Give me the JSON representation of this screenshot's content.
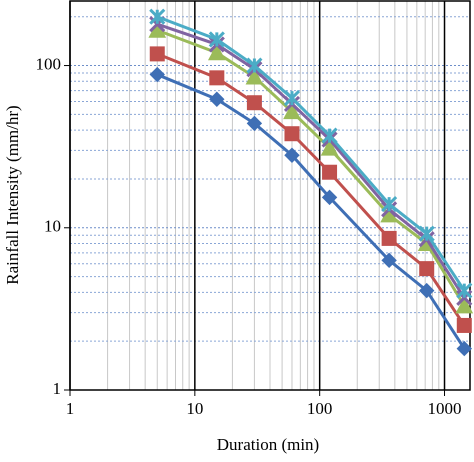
{
  "chart_data": {
    "type": "line",
    "log_x": true,
    "log_y": true,
    "grid": true,
    "x_label": "Duration (min)",
    "y_label": "Rainfall Intensity (mm/hr)",
    "x": [
      5,
      15,
      30,
      60,
      120,
      360,
      720,
      1440
    ],
    "xlim": [
      1,
      1600
    ],
    "xticks": [
      1,
      10,
      100,
      1000
    ],
    "ylim": [
      1,
      250
    ],
    "yticks": [
      1,
      10,
      100
    ],
    "series": [
      {
        "color": "#3f6fb5",
        "marker": "diamond",
        "values": [
          88,
          62,
          44,
          28,
          15.4,
          6.3,
          4.1,
          1.8
        ]
      },
      {
        "color": "#c0504d",
        "marker": "square",
        "values": [
          118,
          84,
          59,
          38,
          22,
          8.6,
          5.6,
          2.5
        ]
      },
      {
        "color": "#9bbb59",
        "marker": "triangle",
        "values": [
          165,
          120,
          85,
          52,
          31,
          12,
          8,
          3.3
        ]
      },
      {
        "color": "#8064a2",
        "marker": "x",
        "values": [
          180,
          135,
          95,
          58,
          35,
          13,
          8.5,
          3.7
        ]
      },
      {
        "color": "#4bacc6",
        "marker": "star",
        "values": [
          200,
          145,
          100,
          63,
          37,
          14,
          9.2,
          4.1
        ]
      }
    ]
  }
}
